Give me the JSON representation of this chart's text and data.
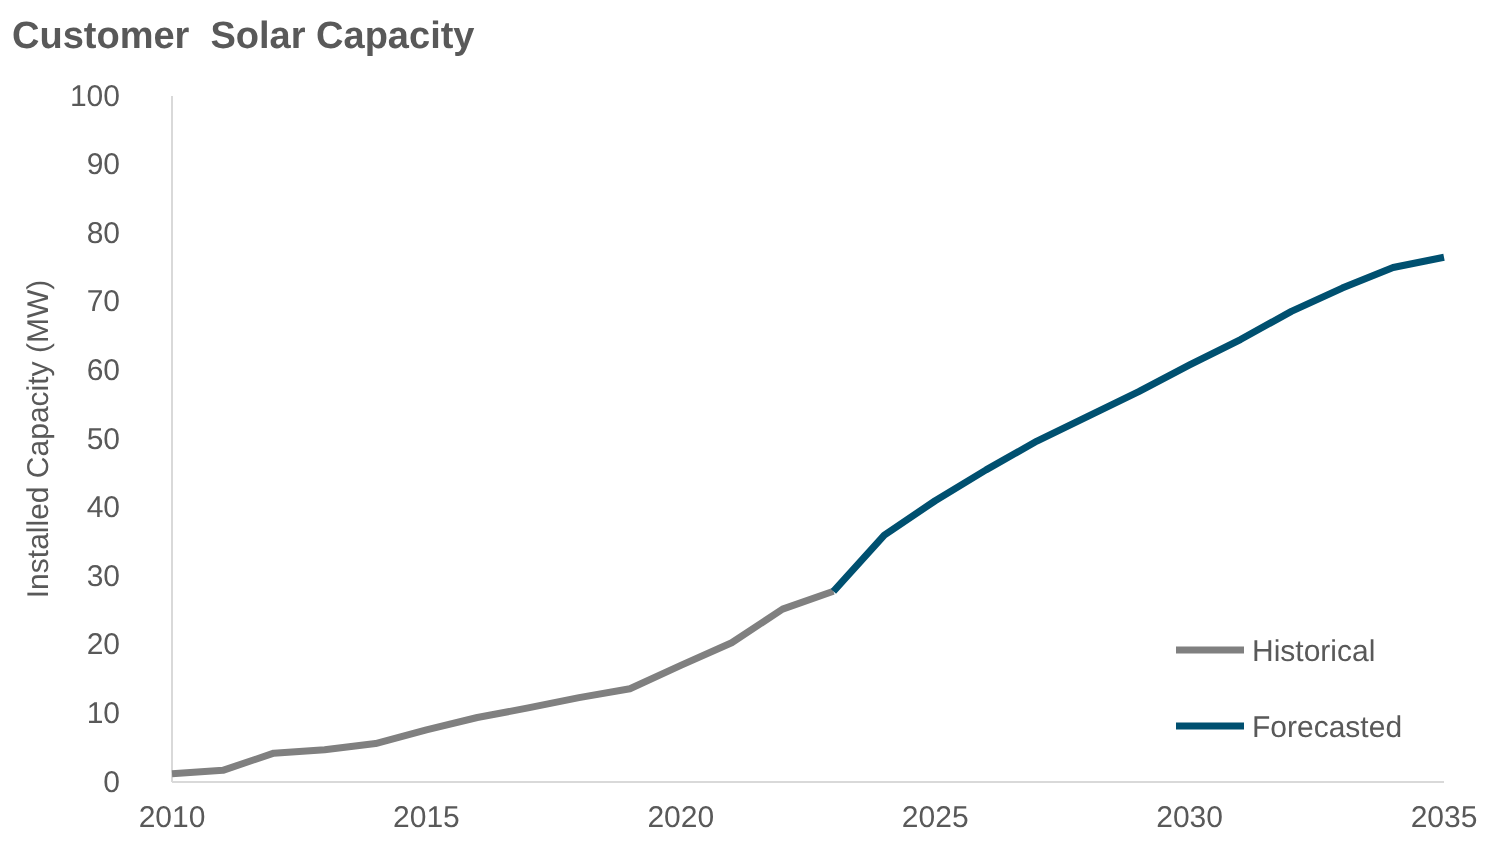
{
  "chart_data": {
    "type": "line",
    "title": "Customer  Solar Capacity",
    "ylabel": "Installed Capacity (MW)",
    "xlim": [
      2010,
      2035
    ],
    "xticks": [
      2010,
      2015,
      2020,
      2025,
      2030,
      2035
    ],
    "ylim": [
      0,
      100
    ],
    "yticks": [
      0,
      10,
      20,
      30,
      40,
      50,
      60,
      70,
      80,
      90,
      100
    ],
    "grid": false,
    "legend": "bottom right",
    "marker": "none",
    "line_style": "solid",
    "series": [
      {
        "name": "Historical",
        "color": "#808080",
        "x": [
          2010,
          2011,
          2012,
          2013,
          2014,
          2015,
          2016,
          2017,
          2018,
          2019,
          2020,
          2021,
          2022,
          2023
        ],
        "values": [
          1.2,
          1.7,
          4.2,
          4.7,
          5.6,
          7.6,
          9.4,
          10.8,
          12.3,
          13.6,
          17.0,
          20.3,
          25.2,
          27.8
        ]
      },
      {
        "name": "Forecasted",
        "color": "#005070",
        "x": [
          2023,
          2024,
          2025,
          2026,
          2027,
          2028,
          2029,
          2030,
          2031,
          2032,
          2033,
          2034,
          2035
        ],
        "values": [
          27.8,
          36.0,
          41.0,
          45.5,
          49.7,
          53.3,
          56.9,
          60.8,
          64.5,
          68.6,
          72.0,
          75.0,
          76.5
        ]
      }
    ]
  }
}
